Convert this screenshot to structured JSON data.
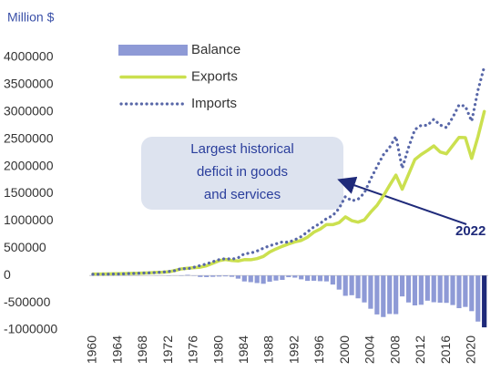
{
  "chart_data": {
    "type": "bar_line",
    "ylabel": "Million $",
    "annotation": "Largest historical deficit in goods and services",
    "highlight_label": "2022",
    "highlight_color": "#1f2a7a",
    "categories": [
      "1960",
      null,
      null,
      null,
      "1964",
      null,
      null,
      null,
      "1968",
      null,
      null,
      null,
      "1972",
      null,
      null,
      null,
      "1976",
      null,
      null,
      null,
      "1980",
      null,
      null,
      null,
      "1984",
      null,
      null,
      null,
      "1988",
      null,
      null,
      null,
      "1992",
      null,
      null,
      null,
      "1996",
      null,
      null,
      null,
      "2000",
      null,
      null,
      null,
      "2004",
      null,
      null,
      null,
      "2008",
      null,
      null,
      null,
      "2012",
      null,
      null,
      null,
      "2016",
      null,
      null,
      null,
      "2020",
      null,
      null
    ],
    "series": [
      {
        "name": "Balance",
        "type": "bar",
        "color": "#8e9ad6",
        "values": [
          3508,
          4195,
          3370,
          4210,
          6022,
          4664,
          2939,
          2604,
          250,
          91,
          2254,
          -1302,
          -5443,
          1900,
          -6318,
          12404,
          -6082,
          -27246,
          -29763,
          -24565,
          -19407,
          -16172,
          -24156,
          -57767,
          -109072,
          -121880,
          -138538,
          -151684,
          -114566,
          -93141,
          -80864,
          -31135,
          -39212,
          -70311,
          -98493,
          -96384,
          -104065,
          -108273,
          -166140,
          -258617,
          -372517,
          -361771,
          -418955,
          -493890,
          -609883,
          -714245,
          -761716,
          -705375,
          -708726,
          -383774,
          -494658,
          -548625,
          -536773,
          -461876,
          -490336,
          -498524,
          -502018,
          -542011,
          -599179,
          -576332,
          -653990,
          -845050,
          -951180
        ]
      },
      {
        "name": "Exports",
        "type": "line",
        "color": "#cbe04f",
        "values": [
          25940,
          26403,
          27722,
          29620,
          33341,
          35285,
          38926,
          41333,
          45543,
          49220,
          56640,
          59677,
          67222,
          91242,
          120897,
          132585,
          142716,
          152301,
          178428,
          224131,
          271834,
          294398,
          275236,
          266106,
          291094,
          289070,
          310033,
          348869,
          431149,
          487003,
          535233,
          578344,
          616882,
          642863,
          703254,
          794387,
          851602,
          934453,
          933174,
          969867,
          1075321,
          1005654,
          978706,
          1020418,
          1161549,
          1286022,
          1457642,
          1653548,
          1841612,
          1583053,
          1853606,
          2127021,
          2218989,
          2293457,
          2376657,
          2266665,
          2232066,
          2383766,
          2533366,
          2528262,
          2148575,
          2546316,
          3008424
        ]
      },
      {
        "name": "Imports",
        "type": "line",
        "dashed": true,
        "color": "#5867a8",
        "values": [
          22432,
          22208,
          24352,
          25410,
          27319,
          30621,
          35987,
          38729,
          45293,
          49129,
          54386,
          61166,
          72665,
          89342,
          127215,
          122730,
          151099,
          182449,
          212504,
          252657,
          291242,
          310527,
          299391,
          323874,
          400166,
          410950,
          448572,
          500552,
          545715,
          580144,
          616097,
          609479,
          656094,
          713174,
          801747,
          890771,
          955667,
          1042726,
          1099314,
          1230176,
          1449377,
          1369005,
          1398452,
          1514616,
          1769000,
          1997000,
          2212000,
          2350000,
          2550000,
          1967000,
          2348000,
          2676000,
          2755000,
          2755000,
          2866000,
          2761000,
          2713000,
          2900000,
          3130000,
          3105000,
          2830000,
          3400000,
          3830000
        ]
      }
    ],
    "ylim": [
      -1000000,
      4000000
    ],
    "yticks": [
      -1000000,
      -500000,
      0,
      500000,
      1000000,
      1500000,
      2000000,
      2500000,
      3000000,
      3500000,
      4000000
    ]
  }
}
